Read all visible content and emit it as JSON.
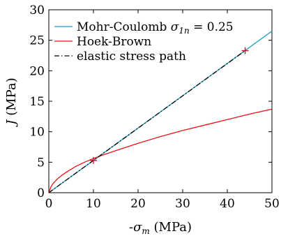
{
  "chart_data": {
    "type": "line",
    "xlabel": "-σm (MPa)",
    "ylabel": "J (MPa)",
    "xlim": [
      0,
      50
    ],
    "ylim": [
      0,
      30
    ],
    "xticks": [
      0,
      10,
      20,
      30,
      40,
      50
    ],
    "yticks": [
      0,
      5,
      10,
      15,
      20,
      25,
      30
    ],
    "grid": false,
    "legend_position": "top-left",
    "series": [
      {
        "name": "Mohr-Coulomb σ1n = 0.25",
        "color": "#1f9fc4",
        "style": "solid",
        "x": [
          0,
          50
        ],
        "y": [
          0,
          26.5
        ]
      },
      {
        "name": "Hoek-Brown",
        "color": "#e8141c",
        "style": "solid",
        "x": [
          0,
          0.5,
          1,
          2,
          3,
          4,
          6,
          8,
          10,
          12,
          15,
          20,
          25,
          30,
          35,
          40,
          45,
          50
        ],
        "y": [
          0,
          1.0,
          1.55,
          2.3,
          2.9,
          3.4,
          4.3,
          5.0,
          5.6,
          6.15,
          6.9,
          8.1,
          9.2,
          10.2,
          11.1,
          12.0,
          12.9,
          13.7
        ]
      },
      {
        "name": "elastic stress path",
        "color": "#000000",
        "style": "dashdot",
        "x": [
          0,
          44
        ],
        "y": [
          0,
          23.3
        ]
      }
    ],
    "markers": [
      {
        "x": 10,
        "y": 5.3,
        "symbol": "+",
        "color": "#c8102e"
      },
      {
        "x": 44,
        "y": 23.3,
        "symbol": "+",
        "color": "#c8102e"
      }
    ]
  }
}
